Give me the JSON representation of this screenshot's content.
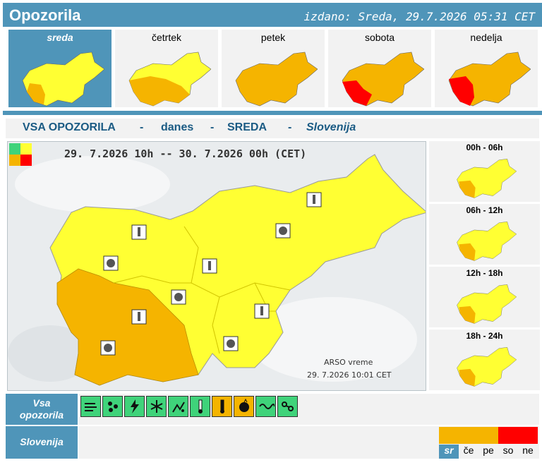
{
  "header": {
    "title": "Opozorila",
    "issued": "izdano: Sreda, 29.7.2026 05:31 CET"
  },
  "days": [
    {
      "label": "sreda",
      "active": true
    },
    {
      "label": "četrtek",
      "active": false
    },
    {
      "label": "petek",
      "active": false
    },
    {
      "label": "sobota",
      "active": false
    },
    {
      "label": "nedelja",
      "active": false
    }
  ],
  "banner": {
    "all": "VSA OPOZORILA",
    "sep": "-",
    "today": "danes",
    "day": "SREDA",
    "region": "Slovenija"
  },
  "main_map": {
    "period": "29. 7.2026 10h -- 30. 7.2026 00h   (CET)",
    "credit": "ARSO vreme",
    "credit_date": "29. 7.2026  10:01 CET"
  },
  "hours": [
    {
      "label": "00h - 06h"
    },
    {
      "label": "06h - 12h"
    },
    {
      "label": "12h - 18h"
    },
    {
      "label": "18h - 24h"
    }
  ],
  "bottom": {
    "all_label_1": "Vsa",
    "all_label_2": "opozorila",
    "region_label": "Slovenija",
    "calendar": [
      {
        "label": "sr",
        "level": "orange",
        "active": true
      },
      {
        "label": "če",
        "level": "orange",
        "active": false
      },
      {
        "label": "pe",
        "level": "orange",
        "active": false
      },
      {
        "label": "so",
        "level": "red",
        "active": false
      },
      {
        "label": "ne",
        "level": "red",
        "active": false
      }
    ]
  },
  "hazards": [
    {
      "name": "wind-icon",
      "level": "green"
    },
    {
      "name": "rain-icon",
      "level": "green"
    },
    {
      "name": "thunderstorm-icon",
      "level": "green"
    },
    {
      "name": "snow-icon",
      "level": "green"
    },
    {
      "name": "snow-ice-icon",
      "level": "green"
    },
    {
      "name": "low-temperature-icon",
      "level": "green"
    },
    {
      "name": "high-temperature-icon",
      "level": "orange"
    },
    {
      "name": "fire-risk-icon",
      "level": "orange"
    },
    {
      "name": "fog-icon",
      "level": "green"
    },
    {
      "name": "coastal-icon",
      "level": "green"
    }
  ],
  "colors": {
    "accent": "#4f95b9",
    "yellow": "#ffff33",
    "orange": "#f5b400",
    "red": "#ff0000",
    "green": "#3fd37a"
  }
}
